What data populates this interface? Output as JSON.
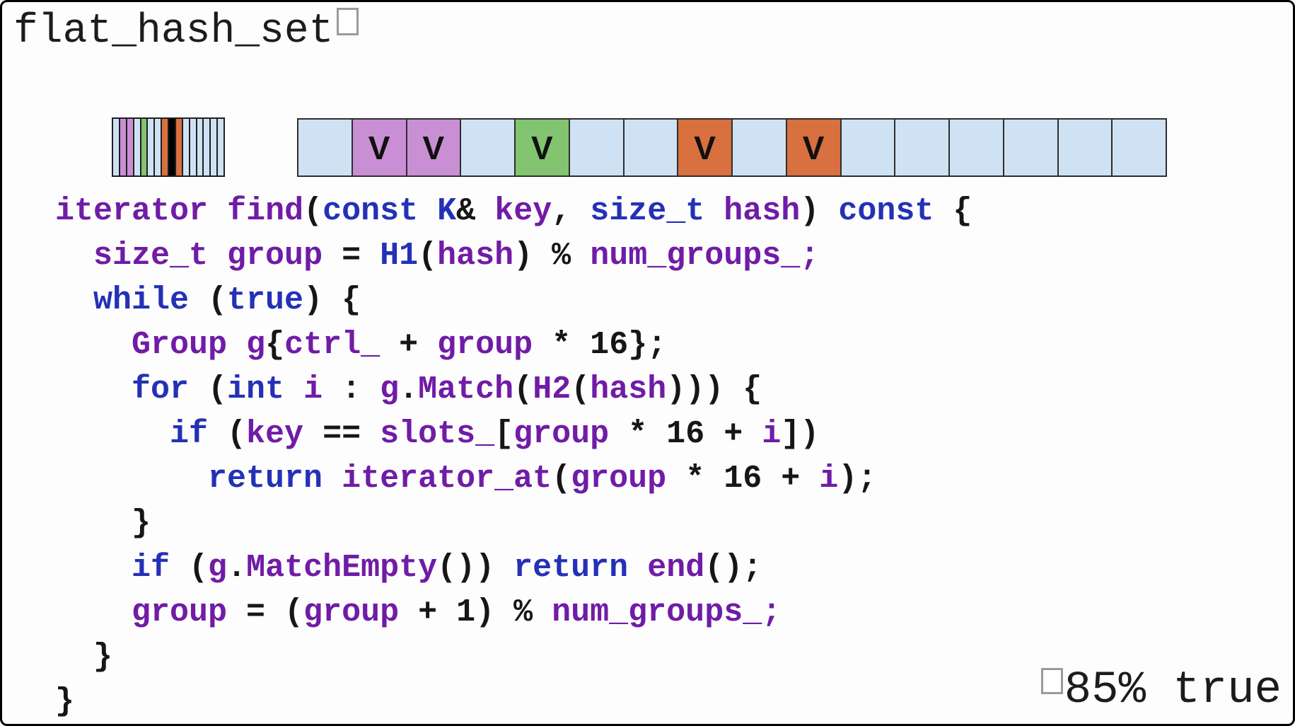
{
  "slide": {
    "title": "flat_hash_set",
    "footnote": "85% true"
  },
  "colors": {
    "cell_blue": "#cfe2f3",
    "cell_purple": "#c98fd4",
    "cell_green": "#82c46f",
    "cell_orange": "#d8703f",
    "cell_black": "#000000",
    "code_keyword": "#2431b6",
    "code_identifier": "#701ca6",
    "code_plain": "#161616"
  },
  "ctrl_strip": {
    "stripes": [
      "blue",
      "purple",
      "purple",
      "blue",
      "green",
      "blue",
      "blue",
      "orange",
      "black",
      "orange",
      "blue",
      "blue",
      "blue",
      "blue",
      "blue",
      "blue"
    ]
  },
  "slot_array": {
    "marker_glyph": "V",
    "cells": [
      {
        "color": "blue",
        "label": ""
      },
      {
        "color": "purple",
        "label": "V"
      },
      {
        "color": "purple",
        "label": "V"
      },
      {
        "color": "blue",
        "label": ""
      },
      {
        "color": "green",
        "label": "V"
      },
      {
        "color": "blue",
        "label": ""
      },
      {
        "color": "blue",
        "label": ""
      },
      {
        "color": "orange",
        "label": "V"
      },
      {
        "color": "blue",
        "label": ""
      },
      {
        "color": "orange",
        "label": "V"
      },
      {
        "color": "blue",
        "label": ""
      },
      {
        "color": "blue",
        "label": ""
      },
      {
        "color": "blue",
        "label": ""
      },
      {
        "color": "blue",
        "label": ""
      },
      {
        "color": "blue",
        "label": ""
      },
      {
        "color": "blue",
        "label": ""
      }
    ]
  },
  "code": {
    "lines": [
      {
        "indent": 0,
        "tokens": [
          [
            "v",
            "iterator"
          ],
          [
            "p",
            " "
          ],
          [
            "v",
            "find"
          ],
          [
            "p",
            "("
          ],
          [
            "k",
            "const"
          ],
          [
            "p",
            " "
          ],
          [
            "k",
            "K"
          ],
          [
            "p",
            "& "
          ],
          [
            "v",
            "key"
          ],
          [
            "p",
            ", "
          ],
          [
            "k",
            "size_t"
          ],
          [
            "p",
            " "
          ],
          [
            "v",
            "hash"
          ],
          [
            "p",
            ") "
          ],
          [
            "k",
            "const"
          ],
          [
            "p",
            " {"
          ]
        ]
      },
      {
        "indent": 2,
        "tokens": [
          [
            "v",
            "size_t"
          ],
          [
            "p",
            " "
          ],
          [
            "v",
            "group"
          ],
          [
            "p",
            " = "
          ],
          [
            "k",
            "H1"
          ],
          [
            "p",
            "("
          ],
          [
            "v",
            "hash"
          ],
          [
            "p",
            ") % "
          ],
          [
            "v",
            "num_groups_"
          ],
          [
            "v",
            ";"
          ]
        ]
      },
      {
        "indent": 2,
        "tokens": [
          [
            "k",
            "while"
          ],
          [
            "p",
            " ("
          ],
          [
            "k",
            "true"
          ],
          [
            "p",
            ") {"
          ]
        ]
      },
      {
        "indent": 4,
        "tokens": [
          [
            "v",
            "Group"
          ],
          [
            "p",
            " "
          ],
          [
            "v",
            "g"
          ],
          [
            "p",
            "{"
          ],
          [
            "v",
            "ctrl_"
          ],
          [
            "p",
            " + "
          ],
          [
            "v",
            "group"
          ],
          [
            "p",
            " * 16};"
          ]
        ]
      },
      {
        "indent": 4,
        "tokens": [
          [
            "k",
            "for"
          ],
          [
            "p",
            " ("
          ],
          [
            "k",
            "int"
          ],
          [
            "p",
            " "
          ],
          [
            "v",
            "i"
          ],
          [
            "p",
            " : "
          ],
          [
            "v",
            "g"
          ],
          [
            "p",
            "."
          ],
          [
            "v",
            "Match"
          ],
          [
            "p",
            "("
          ],
          [
            "v",
            "H2"
          ],
          [
            "p",
            "("
          ],
          [
            "v",
            "hash"
          ],
          [
            "p",
            "))) {"
          ]
        ]
      },
      {
        "indent": 6,
        "tokens": [
          [
            "k",
            "if"
          ],
          [
            "p",
            " ("
          ],
          [
            "v",
            "key"
          ],
          [
            "p",
            " == "
          ],
          [
            "v",
            "slots_"
          ],
          [
            "p",
            "["
          ],
          [
            "v",
            "group"
          ],
          [
            "p",
            " * 16 + "
          ],
          [
            "v",
            "i"
          ],
          [
            "p",
            "])"
          ]
        ]
      },
      {
        "indent": 8,
        "tokens": [
          [
            "k",
            "return"
          ],
          [
            "p",
            " "
          ],
          [
            "v",
            "iterator_at"
          ],
          [
            "p",
            "("
          ],
          [
            "v",
            "group"
          ],
          [
            "p",
            " * 16 + "
          ],
          [
            "v",
            "i"
          ],
          [
            "p",
            ");"
          ]
        ]
      },
      {
        "indent": 4,
        "tokens": [
          [
            "p",
            "}"
          ]
        ]
      },
      {
        "indent": 4,
        "tokens": [
          [
            "k",
            "if"
          ],
          [
            "p",
            " ("
          ],
          [
            "v",
            "g"
          ],
          [
            "p",
            "."
          ],
          [
            "v",
            "MatchEmpty"
          ],
          [
            "p",
            "()) "
          ],
          [
            "k",
            "return"
          ],
          [
            "p",
            " "
          ],
          [
            "v",
            "end"
          ],
          [
            "p",
            "();"
          ]
        ]
      },
      {
        "indent": 4,
        "tokens": [
          [
            "v",
            "group"
          ],
          [
            "p",
            " = ("
          ],
          [
            "v",
            "group"
          ],
          [
            "p",
            " + 1) % "
          ],
          [
            "v",
            "num_groups_"
          ],
          [
            "v",
            ";"
          ]
        ]
      },
      {
        "indent": 2,
        "tokens": [
          [
            "p",
            "}"
          ]
        ]
      },
      {
        "indent": 0,
        "tokens": [
          [
            "p",
            "}"
          ]
        ]
      }
    ]
  }
}
